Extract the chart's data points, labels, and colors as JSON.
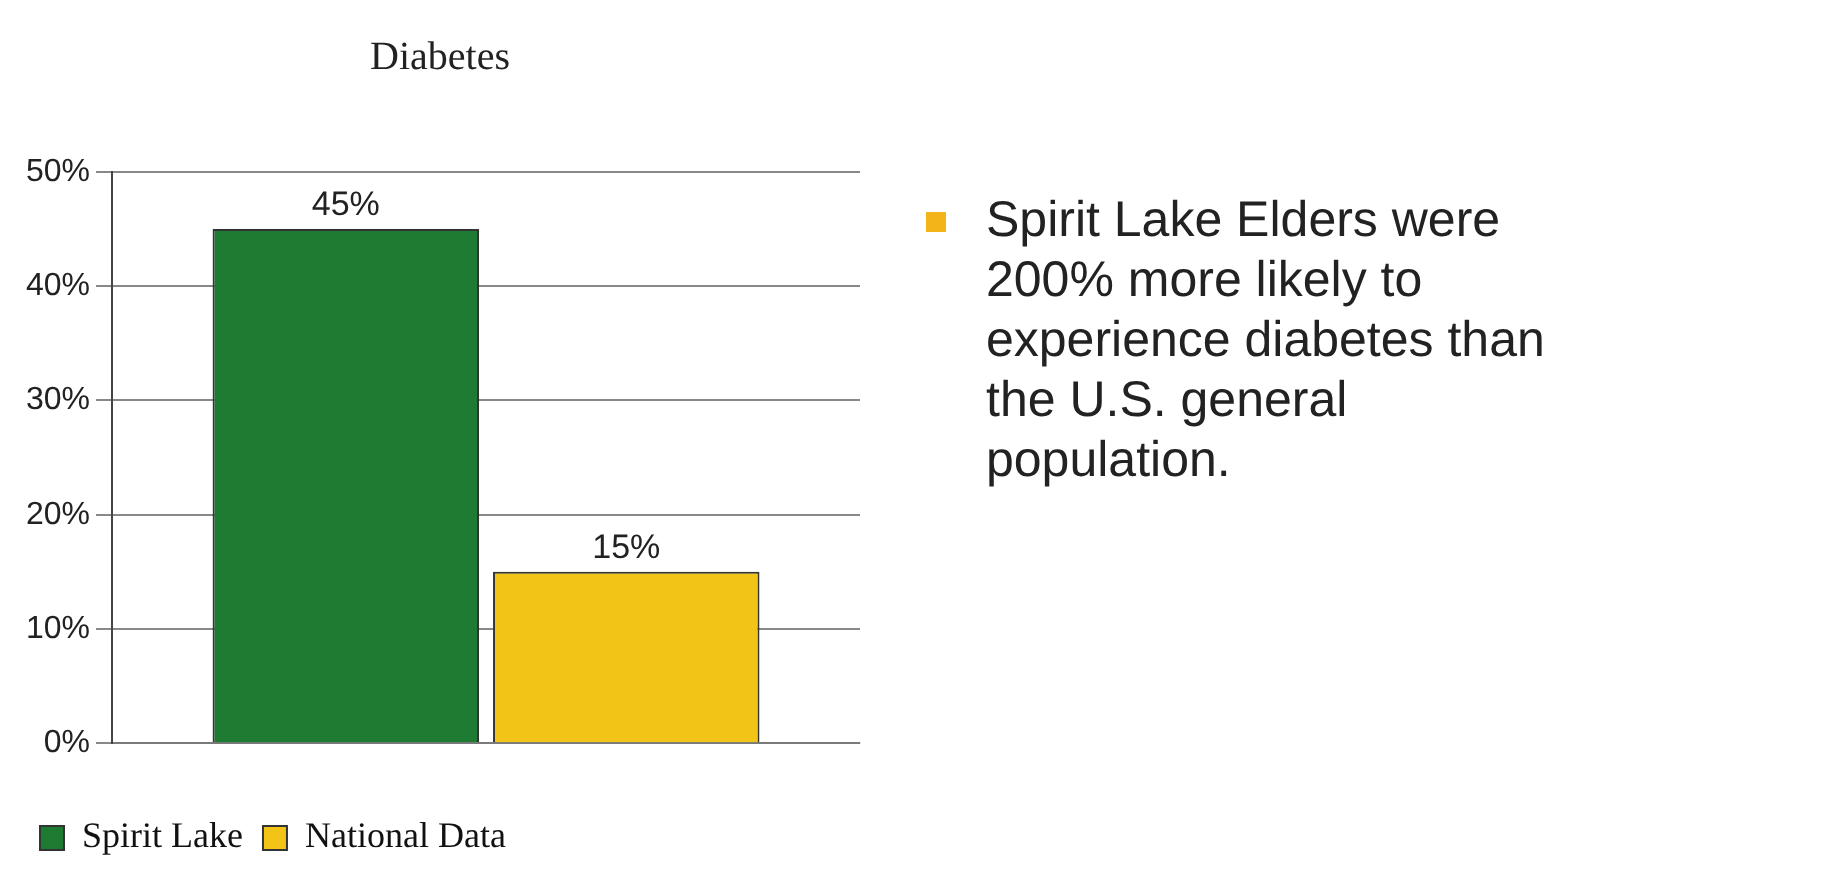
{
  "chart_data": {
    "type": "bar",
    "title": "Diabetes",
    "categories": [
      null
    ],
    "series": [
      {
        "name": "Spirit Lake",
        "color": "#1e7b32",
        "values": [
          45
        ],
        "value_labels": [
          "45%"
        ]
      },
      {
        "name": "National Data",
        "color": "#f2c418",
        "values": [
          15
        ],
        "value_labels": [
          "15%"
        ]
      }
    ],
    "ylim": [
      0,
      50
    ],
    "yticks": [
      {
        "value": 0,
        "label": "0%"
      },
      {
        "value": 10,
        "label": "10%"
      },
      {
        "value": 20,
        "label": "20%"
      },
      {
        "value": 30,
        "label": "30%"
      },
      {
        "value": 40,
        "label": "40%"
      },
      {
        "value": 50,
        "label": "50%"
      }
    ],
    "grid": "y",
    "legend": "bottom left",
    "annotations": [
      "Spirit Lake Elders were 200% more likely to experience diabetes than the U.S. general population."
    ]
  }
}
